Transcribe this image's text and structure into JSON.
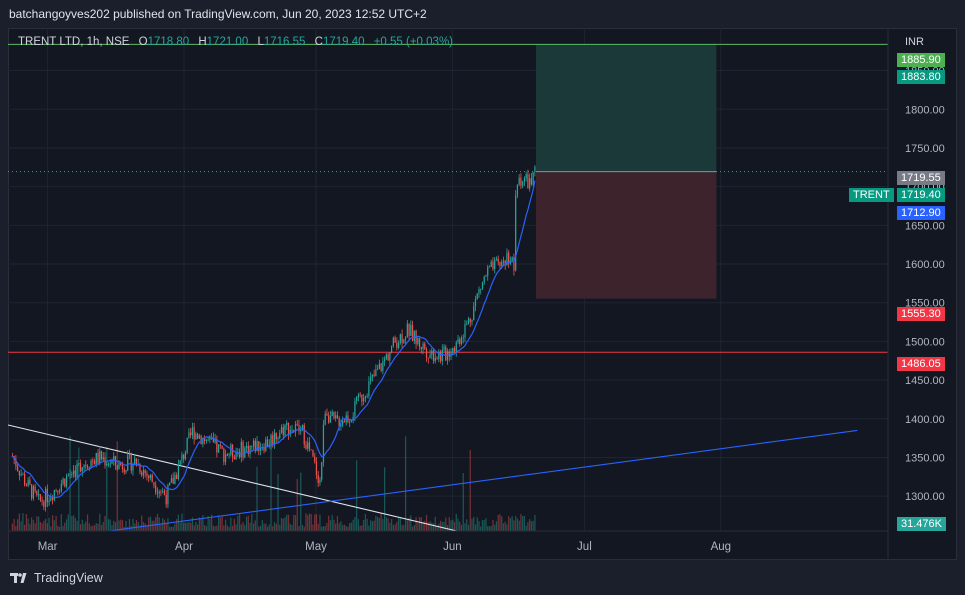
{
  "header": {
    "publish_text": "batchangoyves202 published on TradingView.com, Jun 20, 2023 12:52 UTC+2"
  },
  "legend": {
    "symbol": "TRENT LTD, 1h, NSE",
    "o_label": "O",
    "o_value": "1718.80",
    "h_label": "H",
    "h_value": "1721.00",
    "l_label": "L",
    "l_value": "1716.55",
    "c_label": "C",
    "c_value": "1719.40",
    "change": "+0.55 (+0.03%)"
  },
  "price_axis": {
    "currency": "INR",
    "tags": {
      "high_top": "1885.90",
      "target": "1883.80",
      "prev_close": "1719.55",
      "last": "1719.40",
      "ma": "1712.90",
      "stop": "1555.30",
      "support": "1486.05",
      "volume": "31.476K"
    },
    "symbol_tag": "TRENT"
  },
  "footer": {
    "brand": "TradingView"
  },
  "colors": {
    "background": "#131722",
    "up": "#26a69a",
    "down": "#ef5350",
    "ma": "#2962ff",
    "target_zone": "#1b3b3a",
    "stop_zone": "#3f252d",
    "green_line": "#5dba65",
    "red_line": "#f23645"
  },
  "chart_data": {
    "type": "candlestick",
    "symbol": "TRENT LTD",
    "interval": "1h",
    "exchange": "NSE",
    "currency": "INR",
    "x_ticks": [
      "Mar",
      "Apr",
      "May",
      "Jun",
      "Jul",
      "Aug"
    ],
    "y_ticks": [
      1300,
      1350,
      1400,
      1450,
      1500,
      1550,
      1600,
      1650,
      1700,
      1750,
      1800,
      1850
    ],
    "ylim": [
      1255,
      1905
    ],
    "price_path": [
      [
        "2023-02-21",
        1352
      ],
      [
        "2023-02-24",
        1318
      ],
      [
        "2023-02-27",
        1292
      ],
      [
        "2023-03-02",
        1305
      ],
      [
        "2023-03-06",
        1328
      ],
      [
        "2023-03-09",
        1342
      ],
      [
        "2023-03-13",
        1350
      ],
      [
        "2023-03-17",
        1340
      ],
      [
        "2023-03-21",
        1345
      ],
      [
        "2023-03-24",
        1325
      ],
      [
        "2023-03-28",
        1300
      ],
      [
        "2023-03-31",
        1340
      ],
      [
        "2023-04-03",
        1385
      ],
      [
        "2023-04-06",
        1372
      ],
      [
        "2023-04-10",
        1355
      ],
      [
        "2023-04-13",
        1358
      ],
      [
        "2023-04-17",
        1365
      ],
      [
        "2023-04-20",
        1370
      ],
      [
        "2023-04-24",
        1390
      ],
      [
        "2023-04-27",
        1385
      ],
      [
        "2023-04-28",
        1383
      ],
      [
        "2023-05-02",
        1318
      ],
      [
        "2023-05-03",
        1415
      ],
      [
        "2023-05-05",
        1395
      ],
      [
        "2023-05-09",
        1405
      ],
      [
        "2023-05-12",
        1435
      ],
      [
        "2023-05-16",
        1470
      ],
      [
        "2023-05-19",
        1500
      ],
      [
        "2023-05-22",
        1515
      ],
      [
        "2023-05-24",
        1500
      ],
      [
        "2023-05-27",
        1485
      ],
      [
        "2023-05-30",
        1482
      ],
      [
        "2023-06-02",
        1498
      ],
      [
        "2023-06-05",
        1530
      ],
      [
        "2023-06-07",
        1565
      ],
      [
        "2023-06-09",
        1590
      ],
      [
        "2023-06-12",
        1600
      ],
      [
        "2023-06-14",
        1612
      ],
      [
        "2023-06-15",
        1595
      ],
      [
        "2023-06-15",
        1660
      ],
      [
        "2023-06-16",
        1712
      ],
      [
        "2023-06-19",
        1705
      ],
      [
        "2023-06-20",
        1719.4
      ]
    ],
    "moving_average_last": 1712.9,
    "horizontal_lines": [
      {
        "price": 1883.8,
        "color": "green"
      },
      {
        "price": 1486.05,
        "color": "red"
      }
    ],
    "position": {
      "type": "long",
      "entry": 1719.4,
      "target": 1883.8,
      "stop": 1555.3,
      "start": "2023-06-20",
      "end": "2023-07-31"
    },
    "trendlines": [
      {
        "from": [
          "2023-02-20",
          1392
        ],
        "to": [
          "2023-06-02",
          1255
        ],
        "color": "white"
      },
      {
        "from": [
          "2023-03-15",
          1255
        ],
        "to": [
          "2023-09-01",
          1385
        ],
        "color": "blue"
      }
    ],
    "volume_last": "31.476K"
  }
}
